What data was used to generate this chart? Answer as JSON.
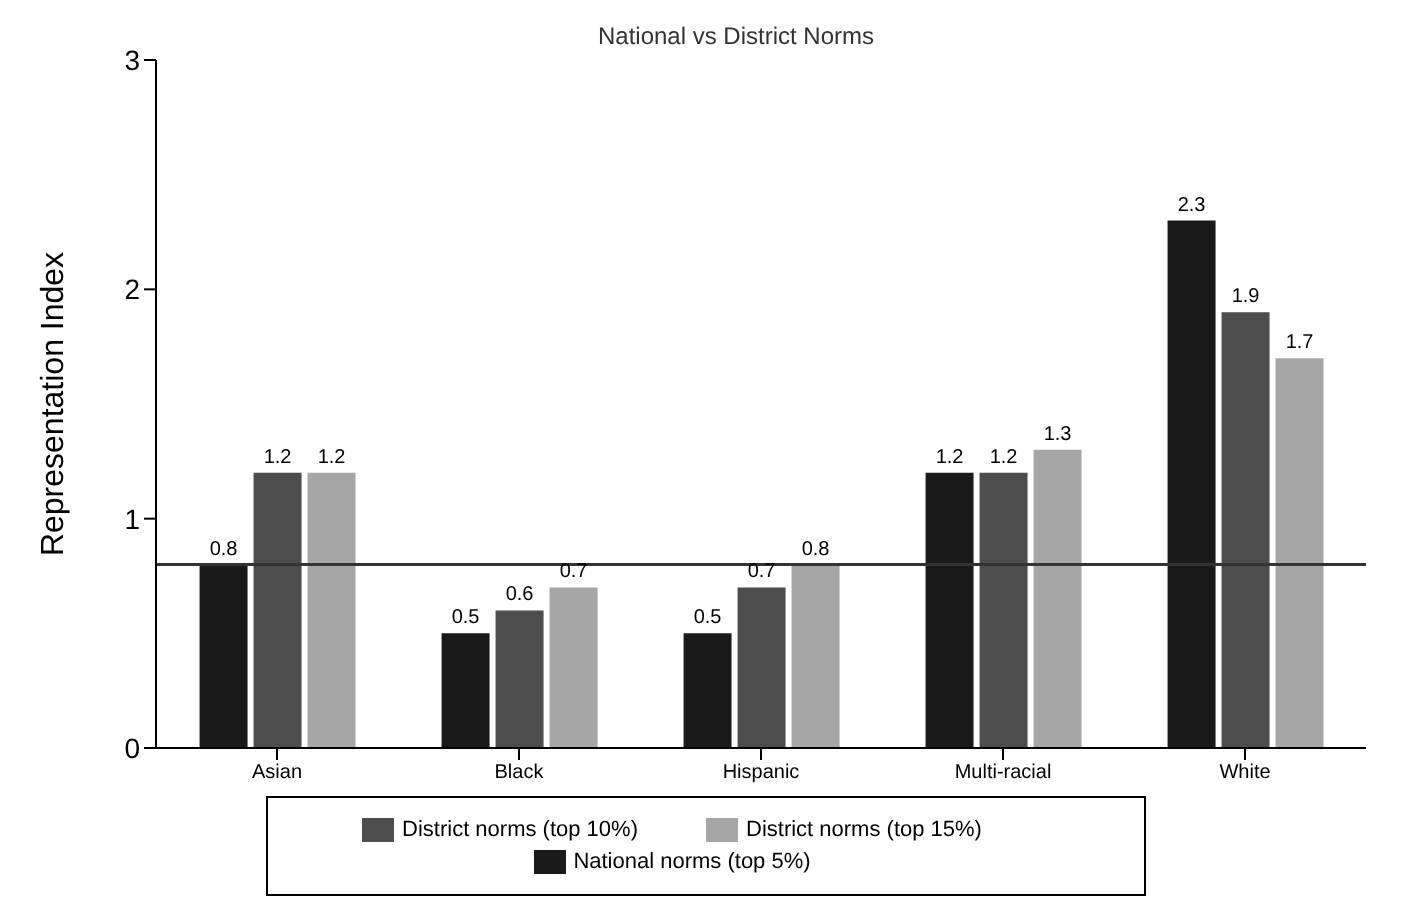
{
  "chart_data": {
    "type": "bar",
    "title": "National vs District Norms",
    "ylabel": "Representation Index",
    "categories": [
      "Asian",
      "Black",
      "Hispanic",
      "Multi-racial",
      "White"
    ],
    "series": [
      {
        "name": "National norms (top 5%)",
        "color": "#1a1a1a",
        "values": [
          0.8,
          0.5,
          0.5,
          1.2,
          2.3
        ]
      },
      {
        "name": "District norms (top 10%)",
        "color": "#4d4d4d",
        "values": [
          1.2,
          0.6,
          0.7,
          1.2,
          1.9
        ]
      },
      {
        "name": "District norms (top 15%)",
        "color": "#a6a6a6",
        "values": [
          1.2,
          0.7,
          0.8,
          1.3,
          1.7
        ]
      }
    ],
    "ylim": [
      0,
      3
    ],
    "yticks": [
      0,
      1,
      2,
      3
    ],
    "grid": false,
    "legend": "bottom",
    "data_labels": true,
    "ref_lines": [
      {
        "axis": "y",
        "value": 0.8,
        "color": "#333333"
      }
    ]
  }
}
